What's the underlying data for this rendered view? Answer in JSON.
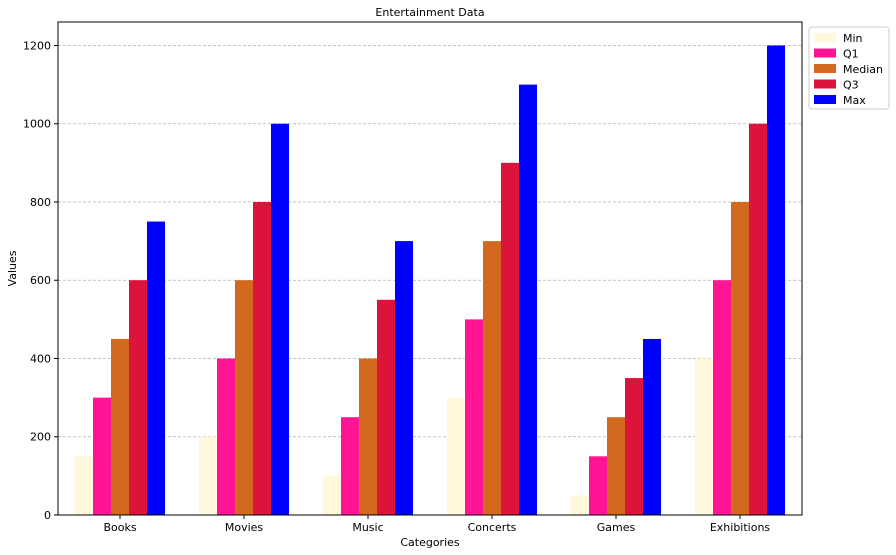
{
  "chart_data": {
    "type": "bar",
    "title": "Entertainment Data",
    "xlabel": "Categories",
    "ylabel": "Values",
    "categories": [
      "Books",
      "Movies",
      "Music",
      "Concerts",
      "Games",
      "Exhibitions"
    ],
    "ylim": [
      0,
      1260
    ],
    "yticks": [
      0,
      200,
      400,
      600,
      800,
      1000,
      1200
    ],
    "grid": "y-dashed",
    "legend_position": "outside-top-right",
    "series": [
      {
        "name": "Min",
        "color": "#FFF8DC",
        "values": [
          150,
          200,
          100,
          300,
          50,
          400
        ]
      },
      {
        "name": "Q1",
        "color": "#FF1493",
        "values": [
          300,
          400,
          250,
          500,
          150,
          600
        ]
      },
      {
        "name": "Median",
        "color": "#D2691E",
        "values": [
          450,
          600,
          400,
          700,
          250,
          800
        ]
      },
      {
        "name": "Q3",
        "color": "#DC143C",
        "values": [
          600,
          800,
          550,
          900,
          350,
          1000
        ]
      },
      {
        "name": "Max",
        "color": "#0000FF",
        "values": [
          750,
          1000,
          700,
          1100,
          450,
          1200
        ]
      }
    ]
  }
}
